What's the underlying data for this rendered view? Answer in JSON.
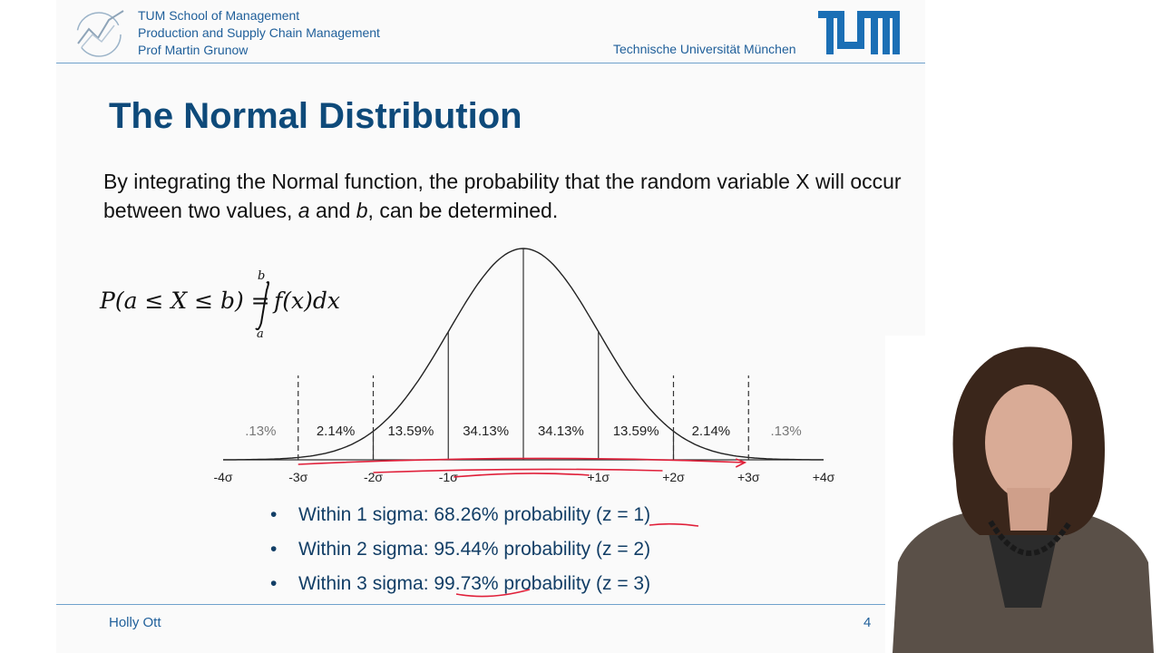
{
  "header": {
    "org_lines": [
      "TUM School of Management",
      "Production and Supply Chain Management",
      "Prof Martin Grunow"
    ],
    "university": "Technische Universität München",
    "logo_text": "TUM"
  },
  "slide": {
    "title": "The Normal Distribution",
    "intro_pre": "By integrating the Normal function, the probability that the random variable X will occur between two values, ",
    "intro_a": "a",
    "intro_mid": " and ",
    "intro_b": "b",
    "intro_post": ", can be determined.",
    "formula": {
      "lhs": "P(a ≤ X ≤ b) =",
      "upper": "b",
      "lower": "a",
      "integrand": "f(x)dx"
    },
    "bullets": [
      "Within 1 sigma: 68.26% probability (z = 1)",
      "Within 2 sigma: 95.44% probability (z = 2)",
      "Within 3 sigma: 99.73% probability (z = 3)"
    ]
  },
  "chart_data": {
    "type": "area",
    "description_curve": "standard normal density",
    "x_ticks": [
      "-4σ",
      "-3σ",
      "-2σ",
      "-1σ",
      "+1σ",
      "+2σ",
      "+3σ",
      "+4σ"
    ],
    "x_tick_values": [
      -4,
      -3,
      -2,
      -1,
      1,
      2,
      3,
      4
    ],
    "xlim": [
      -4,
      4
    ],
    "region_labels": [
      ".13%",
      "2.14%",
      "13.59%",
      "34.13%",
      "34.13%",
      "13.59%",
      "2.14%",
      ".13%"
    ],
    "region_centers": [
      -3.5,
      -2.5,
      -1.5,
      -0.5,
      0.5,
      1.5,
      2.5,
      3.5
    ],
    "solid_lines": [
      -1,
      0,
      1
    ],
    "solid_to_curve": [
      -2,
      2
    ],
    "dashed_lines": [
      -3,
      -2,
      2,
      3
    ],
    "annotation_color": "#e0203a"
  },
  "footer": {
    "name": "Holly Ott",
    "page": "4"
  }
}
